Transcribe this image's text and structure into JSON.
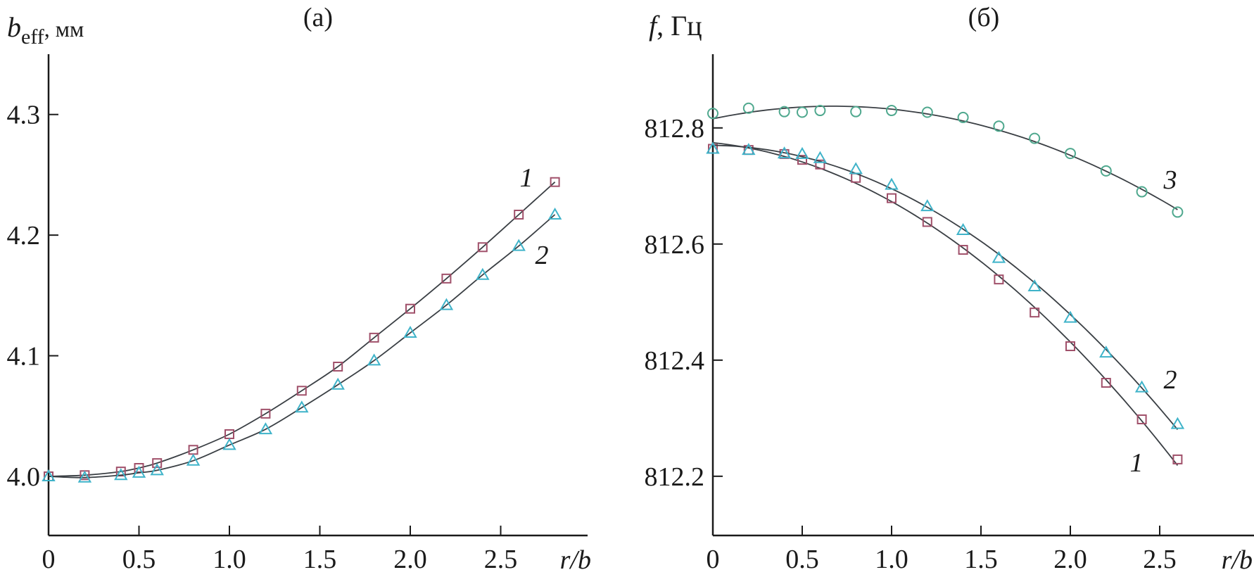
{
  "colors": {
    "series1": "#a0506a",
    "series2": "#3fb3c9",
    "series3": "#4fa88e",
    "line": "#3a3f44",
    "axis": "#1a1a1a"
  },
  "chart_data": [
    {
      "type": "line",
      "title": "(a)",
      "ylabel": "b",
      "ylabel_sub": "eff",
      "ylabel_unit": ", мм",
      "xlabel": "r/b",
      "xlim": [
        0,
        3.05
      ],
      "ylim": [
        3.951,
        4.35
      ],
      "xticks": [
        0,
        0.5,
        1.0,
        1.5,
        2.0,
        2.5
      ],
      "xtick_labels": [
        "0",
        "0.5",
        "1.0",
        "1.5",
        "2.0",
        "2.5"
      ],
      "yticks": [
        4.0,
        4.1,
        4.2,
        4.3
      ],
      "ytick_labels": [
        "4.0",
        "4.1",
        "4.2",
        "4.3"
      ],
      "grid": false,
      "x": [
        0,
        0.2,
        0.4,
        0.5,
        0.6,
        0.8,
        1.0,
        1.2,
        1.4,
        1.6,
        1.8,
        2.0,
        2.2,
        2.4,
        2.6,
        2.8
      ],
      "series": [
        {
          "name": "1",
          "marker": "square",
          "values": [
            4.0,
            4.001,
            4.004,
            4.007,
            4.011,
            4.022,
            4.035,
            4.052,
            4.071,
            4.091,
            4.115,
            4.139,
            4.164,
            4.19,
            4.217,
            4.244
          ]
        },
        {
          "name": "2",
          "marker": "triangle",
          "values": [
            4.0,
            3.999,
            4.001,
            4.003,
            4.005,
            4.013,
            4.026,
            4.039,
            4.057,
            4.076,
            4.096,
            4.119,
            4.142,
            4.167,
            4.191,
            4.217
          ]
        }
      ]
    },
    {
      "type": "line",
      "title": "(б)",
      "ylabel": "f",
      "ylabel_unit": ", Гц",
      "xlabel": "r/b",
      "xlim": [
        0,
        3.03
      ],
      "ylim": [
        812.098,
        812.927
      ],
      "xticks": [
        0,
        0.5,
        1.0,
        1.5,
        2.0,
        2.5
      ],
      "xtick_labels": [
        "0",
        "0.5",
        "1.0",
        "1.5",
        "2.0",
        "2.5"
      ],
      "yticks": [
        812.2,
        812.4,
        812.6,
        812.8
      ],
      "ytick_labels": [
        "812.2",
        "812.4",
        "812.6",
        "812.8"
      ],
      "grid": false,
      "x": [
        0,
        0.2,
        0.4,
        0.5,
        0.6,
        0.8,
        1.0,
        1.2,
        1.4,
        1.6,
        1.8,
        2.0,
        2.2,
        2.4,
        2.6
      ],
      "series": [
        {
          "name": "1",
          "marker": "square",
          "values": [
            812.764,
            812.762,
            812.755,
            812.745,
            812.737,
            812.714,
            812.679,
            812.638,
            812.59,
            812.539,
            812.482,
            812.424,
            812.361,
            812.298,
            812.229
          ]
        },
        {
          "name": "2",
          "marker": "triangle",
          "values": [
            812.764,
            812.762,
            812.756,
            812.755,
            812.748,
            812.729,
            812.702,
            812.665,
            812.624,
            812.576,
            812.527,
            812.473,
            812.413,
            812.353,
            812.29
          ]
        },
        {
          "name": "3",
          "marker": "circle",
          "values": [
            812.825,
            812.834,
            812.828,
            812.827,
            812.83,
            812.828,
            812.83,
            812.827,
            812.818,
            812.803,
            812.782,
            812.756,
            812.726,
            812.69,
            812.655
          ]
        }
      ]
    }
  ]
}
